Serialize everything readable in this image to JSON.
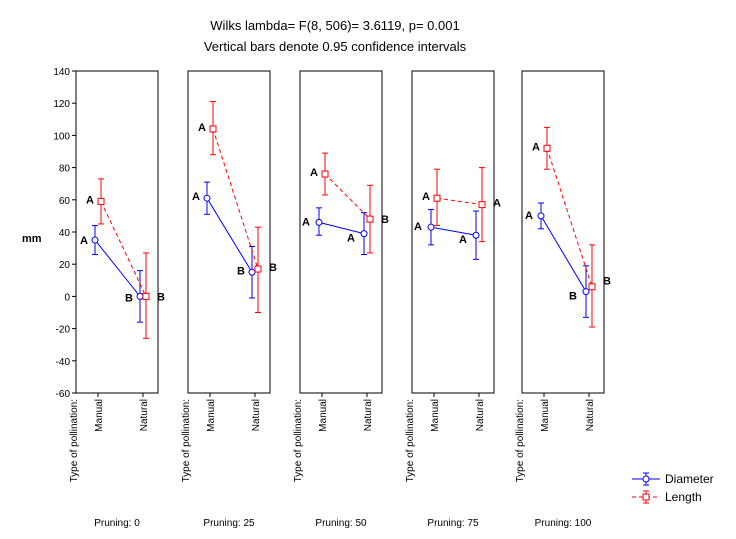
{
  "chart_data": {
    "type": "line",
    "title": "Wilks lambda= F(8, 506)= 3.6119, p= 0.001",
    "subtitle": "Vertical bars denote 0.95 confidence intervals",
    "ylabel": "mm",
    "ylim": [
      -60,
      140
    ],
    "yticks": [
      -60,
      -40,
      -20,
      0,
      20,
      40,
      60,
      80,
      100,
      120,
      140
    ],
    "factor_label": "Type of pollination:",
    "categories": [
      "Manual",
      "Natural"
    ],
    "panels": [
      {
        "label": "Pruning: 0",
        "series": [
          {
            "name": "Diameter",
            "values": [
              35,
              0
            ],
            "ci": [
              [
                26,
                44
              ],
              [
                -16,
                16
              ]
            ],
            "letters": [
              "A",
              "B"
            ]
          },
          {
            "name": "Length",
            "values": [
              59,
              0
            ],
            "ci": [
              [
                45,
                73
              ],
              [
                -26,
                27
              ]
            ],
            "letters": [
              "A",
              "B"
            ]
          }
        ]
      },
      {
        "label": "Pruning: 25",
        "series": [
          {
            "name": "Diameter",
            "values": [
              61,
              15
            ],
            "ci": [
              [
                51,
                71
              ],
              [
                -1,
                31
              ]
            ],
            "letters": [
              "A",
              "B"
            ]
          },
          {
            "name": "Length",
            "values": [
              104,
              17
            ],
            "ci": [
              [
                88,
                121
              ],
              [
                -10,
                43
              ]
            ],
            "letters": [
              "A",
              "B"
            ]
          }
        ]
      },
      {
        "label": "Pruning: 50",
        "series": [
          {
            "name": "Diameter",
            "values": [
              46,
              39
            ],
            "ci": [
              [
                38,
                55
              ],
              [
                26,
                52
              ]
            ],
            "letters": [
              "A",
              "A"
            ]
          },
          {
            "name": "Length",
            "values": [
              76,
              48
            ],
            "ci": [
              [
                63,
                89
              ],
              [
                27,
                69
              ]
            ],
            "letters": [
              "A",
              "B"
            ]
          }
        ]
      },
      {
        "label": "Pruning: 75",
        "series": [
          {
            "name": "Diameter",
            "values": [
              43,
              38
            ],
            "ci": [
              [
                32,
                54
              ],
              [
                23,
                53
              ]
            ],
            "letters": [
              "A",
              "A"
            ]
          },
          {
            "name": "Length",
            "values": [
              61,
              57
            ],
            "ci": [
              [
                44,
                79
              ],
              [
                34,
                80
              ]
            ],
            "letters": [
              "A",
              "A"
            ]
          }
        ]
      },
      {
        "label": "Pruning: 100",
        "series": [
          {
            "name": "Diameter",
            "values": [
              50,
              3
            ],
            "ci": [
              [
                42,
                58
              ],
              [
                -13,
                19
              ]
            ],
            "letters": [
              "A",
              "B"
            ]
          },
          {
            "name": "Length",
            "values": [
              92,
              6
            ],
            "ci": [
              [
                79,
                105
              ],
              [
                -19,
                32
              ]
            ],
            "letters": [
              "A",
              "B"
            ]
          }
        ]
      }
    ],
    "legend": [
      {
        "name": "Diameter",
        "color": "#0000ff",
        "marker": "circle",
        "line": "solid"
      },
      {
        "name": "Length",
        "color": "#ff0000",
        "marker": "square",
        "line": "dashed"
      }
    ]
  }
}
